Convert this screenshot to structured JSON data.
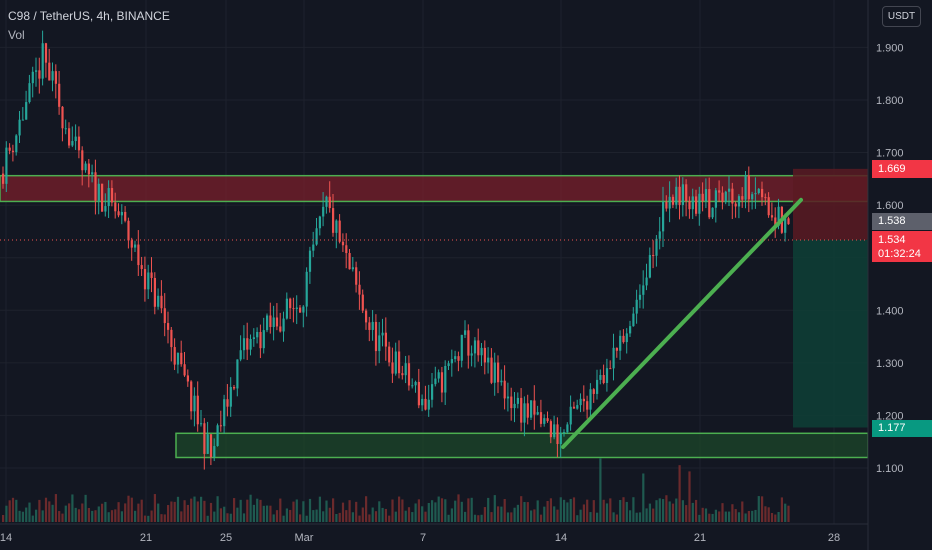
{
  "header": {
    "symbol_line": "C98 / TetherUS, 4h, BINANCE",
    "volume_label": "Vol"
  },
  "currency_button": "USDT",
  "price_tags": {
    "resistance_top": "1.669",
    "prev_close": "1.538",
    "last_price": "1.534",
    "countdown": "01:32:24",
    "target": "1.177"
  },
  "colors": {
    "background": "#131722",
    "up": "#26a69a",
    "down": "#ef5350",
    "zone_line": "#4caf50",
    "resistance_fill": "#7a1f2b",
    "target_fill": "#0e3d35",
    "tag_red": "#f23645",
    "tag_gray": "#5d606b",
    "tag_green": "#089981"
  },
  "chart_data": {
    "type": "candlestick",
    "timeframe": "4h",
    "price_axis": {
      "min": 1.02,
      "max": 1.95,
      "ticks": [
        "1.100",
        "1.200",
        "1.300",
        "1.400",
        "1.500",
        "1.600",
        "1.700",
        "1.800",
        "1.900"
      ]
    },
    "time_axis": {
      "ticks": [
        "14",
        "21",
        "25",
        "Mar",
        "7",
        "14",
        "21",
        "28"
      ]
    },
    "annotations": {
      "resistance_zone": [
        1.607,
        1.656
      ],
      "support_zone": [
        1.12,
        1.166
      ],
      "trendline": {
        "from": [
          "14",
          1.14
        ],
        "to": [
          "26",
          1.61
        ]
      },
      "target_zone": {
        "from": 1.669,
        "to": 1.177,
        "entry": 1.534
      }
    },
    "key_points": [
      {
        "t": "14",
        "price": 1.66
      },
      {
        "t": "16",
        "price": 1.88
      },
      {
        "t": "18",
        "price": 1.66
      },
      {
        "t": "20",
        "price": 1.58
      },
      {
        "t": "22",
        "price": 1.4
      },
      {
        "t": "23",
        "price": 1.28
      },
      {
        "t": "24",
        "price": 1.12
      },
      {
        "t": "26",
        "price": 1.32
      },
      {
        "t": "1",
        "price": 1.42
      },
      {
        "t": "3",
        "price": 1.6
      },
      {
        "t": "5",
        "price": 1.36
      },
      {
        "t": "8",
        "price": 1.22
      },
      {
        "t": "9",
        "price": 1.34
      },
      {
        "t": "11",
        "price": 1.22
      },
      {
        "t": "14",
        "price": 1.16
      },
      {
        "t": "16",
        "price": 1.28
      },
      {
        "t": "18",
        "price": 1.42
      },
      {
        "t": "19",
        "price": 1.62
      },
      {
        "t": "21",
        "price": 1.6
      },
      {
        "t": "24",
        "price": 1.64
      },
      {
        "t": "26",
        "price": 1.534
      }
    ]
  }
}
